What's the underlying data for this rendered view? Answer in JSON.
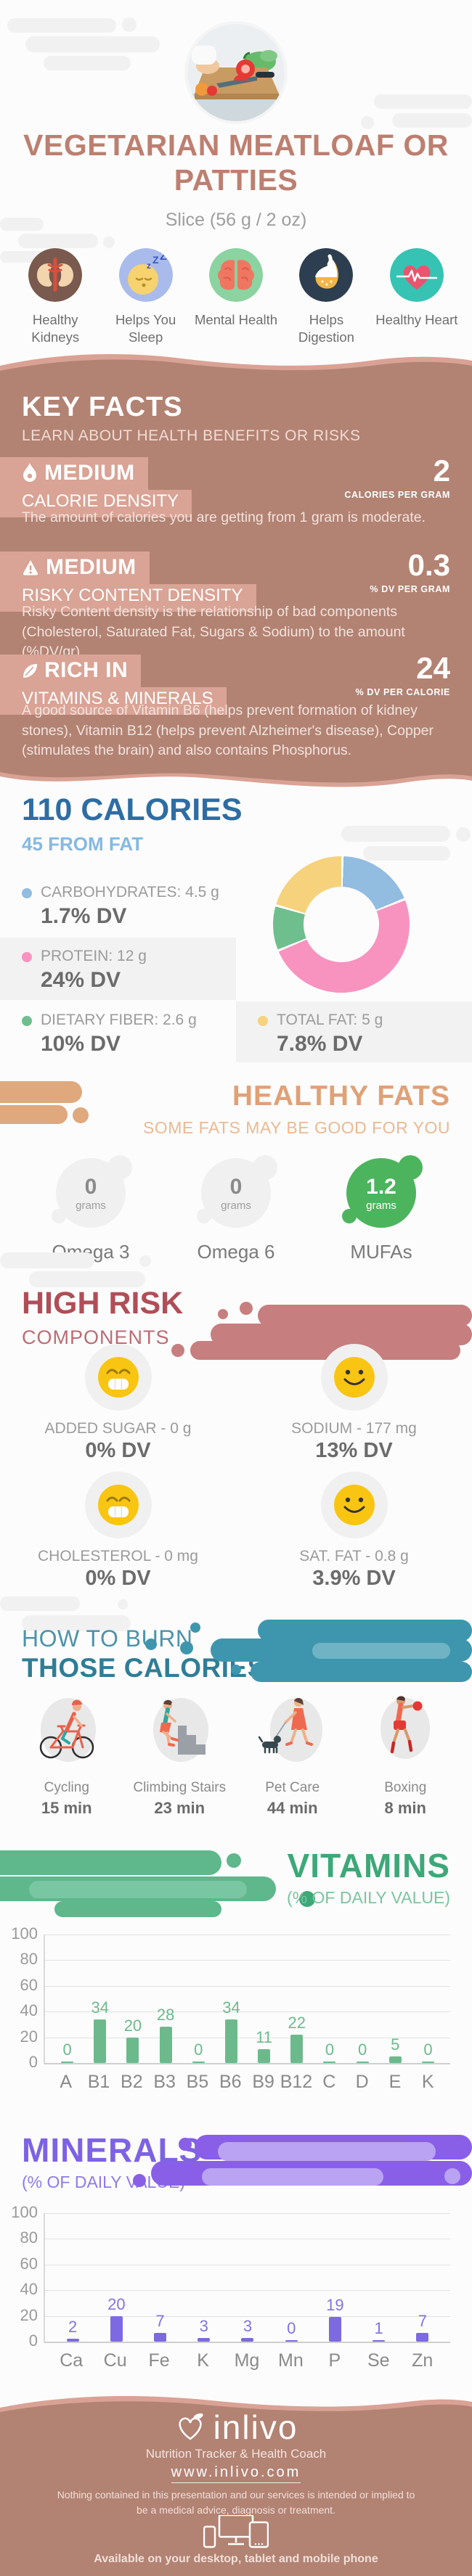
{
  "header": {
    "title": "VEGETARIAN MEATLOAF OR PATTIES",
    "subtitle": "Slice (56 g / 2 oz)",
    "photo_alt": "hands cutting red bell pepper on wooden board",
    "benefits": [
      {
        "label": "Healthy Kidneys",
        "icon": "kidneys-icon",
        "circle_color": "#7a5a4e"
      },
      {
        "label": "Helps You Sleep",
        "icon": "sleeping-face-icon",
        "circle_color": "#a9bbea"
      },
      {
        "label": "Mental Health",
        "icon": "brain-icon",
        "circle_color": "#8bd3a0"
      },
      {
        "label": "Helps Digestion",
        "icon": "stomach-icon",
        "circle_color": "#2d3e50"
      },
      {
        "label": "Healthy Heart",
        "icon": "heart-pulse-icon",
        "circle_color": "#36c3b3"
      }
    ]
  },
  "key_facts": {
    "title": "KEY FACTS",
    "subtitle": "LEARN ABOUT HEALTH BENEFITS OR RISKS",
    "facts": [
      {
        "icon": "flame-icon",
        "level": "MEDIUM",
        "name": "CALORIE DENSITY",
        "value": "2",
        "unit": "CALORIES PER GRAM",
        "description": "The amount of calories you are getting from 1 gram is moderate."
      },
      {
        "icon": "warning-icon",
        "level": "MEDIUM",
        "name": "RISKY CONTENT DENSITY",
        "value": "0.3",
        "unit": "% DV PER GRAM",
        "description": "Risky Content density is the relationship of bad components (Cholesterol, Saturated Fat, Sugars & Sodium) to the amount (%DV/gr)."
      },
      {
        "icon": "leaf-icon",
        "level": "RICH IN",
        "name": "VITAMINS & MINERALS",
        "value": "24",
        "unit": "% DV PER CALORIE",
        "description": "A good source of Vitamin B6 (helps prevent formation of kidney stones), Vitamin B12 (helps prevent Alzheimer's disease), Copper (stimulates the brain) and also contains Phosphorus."
      }
    ]
  },
  "healthy_fats": {
    "title": "HEALTHY FATS",
    "subtitle": "SOME FATS MAY BE GOOD FOR YOU",
    "items": [
      {
        "value": "0",
        "unit": "grams",
        "label": "Omega 3",
        "highlighted": false
      },
      {
        "value": "0",
        "unit": "grams",
        "label": "Omega 6",
        "highlighted": false
      },
      {
        "value": "1.2",
        "unit": "grams",
        "label": "MUFAs",
        "highlighted": true,
        "color": "#4db45e"
      }
    ]
  },
  "high_risk": {
    "title": "HIGH RISK",
    "subtitle": "COMPONENTS",
    "items": [
      {
        "label": "ADDED SUGAR - 0 g",
        "dv": "0% DV",
        "mood_icon": "grinning-face-icon"
      },
      {
        "label": "SODIUM - 177 mg",
        "dv": "13% DV",
        "mood_icon": "smiling-face-icon"
      },
      {
        "label": "CHOLESTEROL - 0 mg",
        "dv": "0% DV",
        "mood_icon": "grinning-face-icon"
      },
      {
        "label": "SAT. FAT - 0.8 g",
        "dv": "3.9% DV",
        "mood_icon": "smiling-face-icon"
      }
    ]
  },
  "burn": {
    "title_line1": "HOW TO BURN",
    "title_line2": "THOSE CALORIES",
    "activities": [
      {
        "label": "Cycling",
        "duration": "15 min",
        "icon": "cycling-icon"
      },
      {
        "label": "Climbing Stairs",
        "duration": "23 min",
        "icon": "climbing-stairs-icon"
      },
      {
        "label": "Pet Care",
        "duration": "44 min",
        "icon": "dog-walking-icon"
      },
      {
        "label": "Boxing",
        "duration": "8 min",
        "icon": "boxing-icon"
      }
    ]
  },
  "chart_data": [
    {
      "id": "calorie-breakdown-donut",
      "type": "pie",
      "title": "110 CALORIES",
      "subtitle": "45 FROM FAT",
      "legend_position": "left",
      "segments": [
        {
          "label": "CARBOHYDRATES: 4.5 g",
          "dv": "1.7% DV",
          "grams": 4.5,
          "color": "#92bce0"
        },
        {
          "label": "PROTEIN: 12 g",
          "dv": "24% DV",
          "grams": 12,
          "color": "#f893c0"
        },
        {
          "label": "DIETARY FIBER: 2.6 g",
          "dv": "10% DV",
          "grams": 2.6,
          "color": "#6fbe8d"
        },
        {
          "label": "TOTAL FAT: 5 g",
          "dv": "7.8% DV",
          "grams": 5,
          "color": "#f6d27c"
        }
      ]
    },
    {
      "id": "vitamins-bars",
      "type": "bar",
      "title": "VITAMINS",
      "subtitle": "(% OF DAILY VALUE)",
      "categories": [
        "A",
        "B1",
        "B2",
        "B3",
        "B5",
        "B6",
        "B9",
        "B12",
        "C",
        "D",
        "E",
        "K"
      ],
      "values": [
        0,
        34,
        20,
        28,
        0,
        34,
        11,
        22,
        0,
        0,
        5,
        0
      ],
      "ylim": [
        0,
        100
      ],
      "yticks": [
        0,
        20,
        40,
        60,
        80,
        100
      ],
      "grid": true,
      "bar_color": "#6cba8c",
      "value_label_color": "#6cba8c"
    },
    {
      "id": "minerals-bars",
      "type": "bar",
      "title": "MINERALS",
      "subtitle": "(% OF DAILY VALUE)",
      "categories": [
        "Ca",
        "Cu",
        "Fe",
        "K",
        "Mg",
        "Mn",
        "P",
        "Se",
        "Zn"
      ],
      "values": [
        2,
        20,
        7,
        3,
        3,
        0,
        19,
        1,
        7
      ],
      "ylim": [
        0,
        100
      ],
      "yticks": [
        0,
        20,
        40,
        60,
        80,
        100
      ],
      "grid": true,
      "bar_color": "#7d6ae0",
      "value_label_color": "#8274e3"
    }
  ],
  "footer": {
    "brand": "inlivo",
    "logo_icon": "heart-leaf-logo",
    "tagline": "Nutrition Tracker & Health Coach",
    "url": "www.inlivo.com",
    "disclaimer": "Nothing contained in this presentation and our services is intended or implied to be a medical advice, diagnosis or treatment.",
    "devices_icon": "devices-icon",
    "availability": "Available on your desktop, tablet and mobile phone"
  },
  "colors": {
    "title_rose": "#bd7f70",
    "keyfacts_bg": "#b28273",
    "keyfacts_tag_bg": "#d9a395",
    "wave_light": "#d9a294",
    "calories_blue": "#2d6da3",
    "calories_light_blue": "#85b9e2",
    "healthy_fats_orange": "#e0a176",
    "high_risk_red": "#b04e57",
    "burn_teal": "#2f7d96",
    "vitamins_green": "#3da878",
    "minerals_purple": "#7d62e5",
    "emoji_yellow": "#f9c513",
    "mufa_green": "#4db45e"
  }
}
